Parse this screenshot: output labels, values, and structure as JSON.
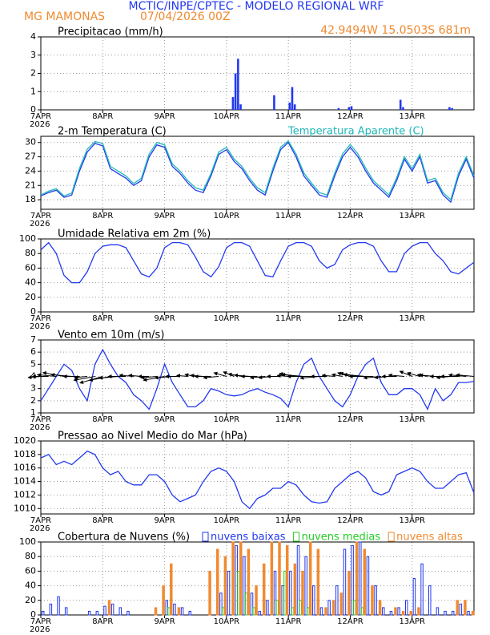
{
  "header": {
    "title": "MCTIC/INPE/CPTEC - MODELO REGIONAL WRF",
    "station": "MG MAMONAS",
    "date": "07/04/2026 00Z",
    "location": "42.9494W 15.0503S 681m"
  },
  "time_axis": {
    "labels": [
      "7APR",
      "8APR",
      "9APR",
      "10APR",
      "11APR",
      "12APR",
      "13APR"
    ],
    "year": "2026"
  },
  "chart_data": [
    {
      "type": "bar",
      "title": "Precipitacao (mm/h)",
      "color": "#2238f0",
      "ylim": [
        0,
        4
      ],
      "yticks": [
        0,
        1,
        2,
        3,
        4
      ],
      "grid": true,
      "values": [
        0,
        0,
        0,
        0,
        0,
        0,
        0,
        0,
        0,
        0,
        0,
        0,
        0,
        0,
        0,
        0,
        0,
        0,
        0,
        0,
        0,
        0,
        0,
        0,
        0,
        0,
        0,
        0,
        0,
        0,
        0,
        0,
        0,
        0,
        0,
        0,
        0,
        0,
        0,
        0,
        0,
        0,
        0,
        0,
        0,
        0,
        0,
        0,
        0,
        0,
        0,
        0,
        0,
        0,
        0,
        0,
        0,
        0,
        0,
        0,
        0,
        0,
        0,
        0,
        0,
        0,
        0,
        0,
        0,
        0,
        0,
        0,
        0,
        0,
        0.7,
        2.0,
        2.8,
        0.3,
        0,
        0,
        0,
        0,
        0,
        0,
        0,
        0,
        0,
        0,
        0,
        0,
        0.8,
        0,
        0,
        0,
        0,
        0,
        0.4,
        1.25,
        0.3,
        0,
        0,
        0,
        0,
        0,
        0,
        0,
        0,
        0,
        0,
        0,
        0,
        0,
        0,
        0,
        0,
        0.1,
        0,
        0,
        0,
        0.15,
        0.2,
        0,
        0,
        0,
        0,
        0,
        0,
        0,
        0,
        0,
        0,
        0,
        0,
        0,
        0,
        0,
        0,
        0,
        0,
        0.55,
        0.15,
        0,
        0,
        0,
        0,
        0,
        0,
        0,
        0,
        0,
        0,
        0,
        0,
        0,
        0,
        0,
        0,
        0,
        0.15,
        0.1,
        0,
        0,
        0,
        0,
        0,
        0,
        0,
        0
      ]
    },
    {
      "type": "line",
      "title": "2-m Temperatura (C)",
      "ylim": [
        16,
        31.3
      ],
      "yticks": [
        18,
        21,
        24,
        27,
        30
      ],
      "grid": true,
      "series": [
        {
          "color": "#2238f0",
          "values": [
            18.8,
            19.5,
            20,
            18.5,
            19,
            24,
            28,
            29.8,
            29.3,
            24.5,
            23.5,
            22.5,
            21,
            22,
            27,
            29.5,
            29,
            25,
            23.5,
            21.5,
            20,
            19.5,
            23,
            27.5,
            28.5,
            26,
            24.5,
            22,
            20,
            19,
            24,
            28.5,
            30,
            27,
            23,
            21,
            19,
            18.5,
            23,
            27,
            29,
            27,
            24,
            21.5,
            20,
            18.5,
            22,
            26.5,
            24,
            27,
            21.5,
            22,
            19,
            17.5,
            23,
            26.5,
            22.5
          ]
        },
        {
          "name": "Temperatura Aparente (C)",
          "color": "#20b8b8",
          "values": [
            19,
            19.8,
            20.3,
            18.8,
            19.4,
            24.6,
            28.6,
            30.2,
            29.8,
            25,
            24,
            23,
            21.4,
            22.5,
            27.6,
            30,
            29.5,
            25.5,
            24,
            22,
            20.5,
            20,
            23.5,
            28,
            29,
            26.5,
            25,
            22.5,
            20.5,
            19.5,
            24.6,
            29,
            30.3,
            27.6,
            23.6,
            21.5,
            19.5,
            19,
            23.6,
            27.6,
            29.6,
            27.6,
            24.6,
            22,
            20.5,
            19,
            22.6,
            27,
            24.5,
            27.5,
            22,
            22.5,
            19.5,
            18,
            23.6,
            27,
            23
          ]
        }
      ]
    },
    {
      "type": "line",
      "title": "Umidade Relativa em 2m (%)",
      "ylim": [
        0,
        100
      ],
      "yticks": [
        0,
        20,
        40,
        60,
        80,
        100
      ],
      "grid": true,
      "series": [
        {
          "color": "#2238f0",
          "values": [
            85,
            95,
            80,
            50,
            40,
            40,
            55,
            80,
            90,
            92,
            92,
            88,
            70,
            52,
            48,
            60,
            88,
            95,
            95,
            92,
            75,
            55,
            48,
            62,
            88,
            95,
            95,
            90,
            70,
            50,
            48,
            70,
            90,
            95,
            95,
            90,
            70,
            60,
            65,
            85,
            92,
            95,
            95,
            90,
            70,
            55,
            55,
            80,
            90,
            95,
            95,
            80,
            70,
            55,
            52,
            60,
            68
          ]
        }
      ]
    },
    {
      "type": "line",
      "title": "Vento em 10m (m/s)",
      "ylim": [
        1,
        7
      ],
      "yticks": [
        1,
        2,
        3,
        4,
        5,
        6,
        7
      ],
      "grid": true,
      "series": [
        {
          "color": "#2238f0",
          "values": [
            2,
            3,
            4,
            5,
            4.5,
            3,
            2,
            5,
            6.2,
            5,
            4,
            3.5,
            2.5,
            2,
            1.3,
            3,
            5,
            3.5,
            2.5,
            1.5,
            1.5,
            2,
            3,
            2.8,
            2.5,
            2.4,
            2.5,
            2.8,
            3,
            2.7,
            2.5,
            2.2,
            1.5,
            3.5,
            5,
            5.5,
            4,
            3,
            2,
            1.5,
            2.5,
            4,
            5,
            5.5,
            3.5,
            2.5,
            2.5,
            3,
            3,
            2.5,
            1.3,
            3,
            2,
            2.5,
            3.5,
            3.5,
            3.6
          ]
        }
      ],
      "wind_direction": [
        80,
        90,
        100,
        110,
        100,
        90,
        80,
        70,
        60,
        70,
        80,
        90,
        100,
        100,
        90,
        80,
        70,
        80,
        90,
        100,
        110,
        100,
        90,
        80,
        120,
        130,
        110,
        100,
        90,
        80,
        80,
        90,
        100,
        110,
        100,
        90,
        80,
        90,
        100,
        110,
        120,
        110,
        100,
        90,
        80,
        80,
        90,
        100,
        130,
        120,
        110,
        100,
        90,
        80,
        90,
        100,
        100
      ]
    },
    {
      "type": "line",
      "title": "Pressao ao Nivel Medio do Mar (hPa)",
      "ylim": [
        1009.2,
        1020
      ],
      "yticks": [
        1010,
        1012,
        1014,
        1016,
        1018,
        1020
      ],
      "grid": true,
      "series": [
        {
          "color": "#2238f0",
          "values": [
            1017.5,
            1018,
            1016.5,
            1017,
            1016.5,
            1017.5,
            1018.5,
            1018,
            1016,
            1015,
            1015.5,
            1014,
            1013.5,
            1013.5,
            1015,
            1015,
            1014,
            1012,
            1011,
            1011.5,
            1012,
            1014,
            1015.5,
            1016,
            1015.5,
            1014,
            1011,
            1010,
            1011.5,
            1012,
            1013,
            1013,
            1014,
            1013.5,
            1012,
            1011,
            1010.8,
            1011,
            1013,
            1014,
            1015,
            1015.5,
            1014.5,
            1012.5,
            1012,
            1012.5,
            1015,
            1015.5,
            1016,
            1015.5,
            1014,
            1013,
            1013,
            1014,
            1015,
            1015.3,
            1012.3
          ]
        }
      ]
    },
    {
      "type": "bar",
      "title": "Cobertura de Nuvens (%)",
      "ylim": [
        0,
        100
      ],
      "yticks": [
        0,
        20,
        40,
        60,
        80,
        100
      ],
      "grid": true,
      "series": [
        {
          "name": "nuvens baixas",
          "color": "#2238f0",
          "fill": false,
          "values": [
            5,
            15,
            25,
            10,
            0,
            0,
            5,
            5,
            12,
            15,
            10,
            5,
            0,
            0,
            0,
            0,
            20,
            15,
            10,
            5,
            0,
            0,
            0,
            30,
            60,
            95,
            80,
            30,
            5,
            20,
            60,
            40,
            60,
            95,
            80,
            40,
            10,
            20,
            40,
            90,
            95,
            100,
            80,
            40,
            10,
            5,
            10,
            20,
            50,
            70,
            40,
            10,
            5,
            5,
            15,
            5
          ]
        },
        {
          "name": "nuvens medias",
          "color": "#22cc22",
          "fill": false,
          "values": [
            0,
            0,
            0,
            0,
            0,
            0,
            0,
            0,
            0,
            0,
            0,
            0,
            0,
            0,
            0,
            0,
            10,
            0,
            0,
            0,
            0,
            0,
            0,
            10,
            0,
            60,
            30,
            10,
            0,
            0,
            20,
            60,
            10,
            20,
            10,
            0,
            0,
            0,
            0,
            0,
            20,
            10,
            0,
            0,
            0,
            0,
            0,
            0,
            0,
            0,
            0,
            0,
            0,
            0,
            0,
            0
          ]
        },
        {
          "name": "nuvens altas",
          "color": "#f08a30",
          "fill": true,
          "values": [
            0,
            0,
            0,
            0,
            0,
            0,
            0,
            0,
            20,
            0,
            0,
            0,
            0,
            0,
            10,
            40,
            70,
            10,
            0,
            0,
            0,
            60,
            90,
            80,
            100,
            100,
            90,
            40,
            70,
            100,
            100,
            95,
            70,
            60,
            100,
            90,
            10,
            20,
            30,
            60,
            100,
            90,
            40,
            20,
            0,
            10,
            5,
            5,
            10,
            0,
            0,
            0,
            0,
            20,
            20,
            5
          ]
        }
      ]
    }
  ]
}
